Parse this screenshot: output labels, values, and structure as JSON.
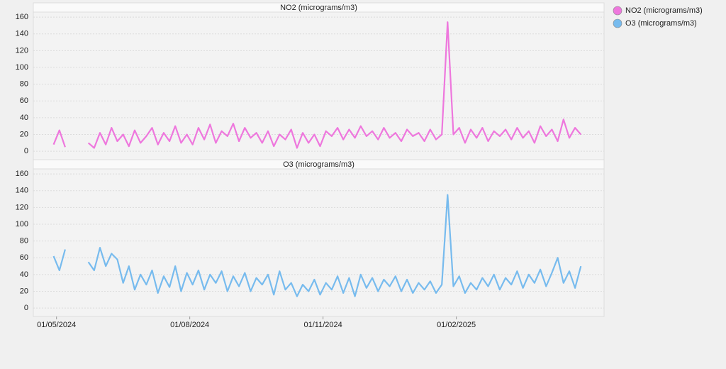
{
  "chart_data": {
    "type": "line",
    "x": [
      "2024-04-29",
      "2024-05-03",
      "2024-05-07",
      "2024-05-11",
      "2024-05-15",
      "2024-05-19",
      "2024-05-23",
      "2024-05-27",
      "2024-05-31",
      "2024-06-04",
      "2024-06-08",
      "2024-06-12",
      "2024-06-16",
      "2024-06-20",
      "2024-06-24",
      "2024-06-28",
      "2024-07-02",
      "2024-07-06",
      "2024-07-10",
      "2024-07-14",
      "2024-07-18",
      "2024-07-22",
      "2024-07-26",
      "2024-07-30",
      "2024-08-03",
      "2024-08-07",
      "2024-08-11",
      "2024-08-15",
      "2024-08-19",
      "2024-08-23",
      "2024-08-27",
      "2024-08-31",
      "2024-09-04",
      "2024-09-08",
      "2024-09-12",
      "2024-09-16",
      "2024-09-20",
      "2024-09-24",
      "2024-09-28",
      "2024-10-02",
      "2024-10-06",
      "2024-10-10",
      "2024-10-14",
      "2024-10-18",
      "2024-10-22",
      "2024-10-26",
      "2024-10-30",
      "2024-11-03",
      "2024-11-07",
      "2024-11-11",
      "2024-11-15",
      "2024-11-19",
      "2024-11-23",
      "2024-11-27",
      "2024-12-01",
      "2024-12-05",
      "2024-12-09",
      "2024-12-13",
      "2024-12-17",
      "2024-12-21",
      "2024-12-25",
      "2024-12-29",
      "2025-01-02",
      "2025-01-06",
      "2025-01-10",
      "2025-01-14",
      "2025-01-18",
      "2025-01-22",
      "2025-01-26",
      "2025-01-30",
      "2025-02-03",
      "2025-02-07",
      "2025-02-11",
      "2025-02-15",
      "2025-02-19",
      "2025-02-23",
      "2025-02-27",
      "2025-03-03",
      "2025-03-07",
      "2025-03-11",
      "2025-03-15",
      "2025-03-19",
      "2025-03-23",
      "2025-03-27",
      "2025-03-31",
      "2025-04-04",
      "2025-04-08",
      "2025-04-12",
      "2025-04-16",
      "2025-04-20",
      "2025-04-24",
      "2025-04-28"
    ],
    "series": [
      {
        "name": "NO2 (micrograms/m3)",
        "color": "#ee77dd",
        "values": [
          8,
          25,
          5,
          null,
          null,
          null,
          10,
          4,
          22,
          8,
          28,
          12,
          20,
          6,
          25,
          10,
          18,
          28,
          8,
          22,
          12,
          30,
          10,
          20,
          8,
          28,
          14,
          32,
          10,
          24,
          18,
          33,
          12,
          28,
          16,
          22,
          10,
          24,
          6,
          20,
          14,
          26,
          4,
          22,
          10,
          20,
          6,
          24,
          18,
          28,
          14,
          26,
          16,
          30,
          18,
          24,
          14,
          28,
          16,
          22,
          12,
          26,
          18,
          22,
          12,
          26,
          14,
          20,
          154,
          20,
          28,
          10,
          26,
          16,
          28,
          12,
          24,
          18,
          26,
          14,
          28,
          16,
          24,
          10,
          30,
          18,
          26,
          12,
          38,
          16,
          28,
          20
        ]
      },
      {
        "name": "O3 (micrograms/m3)",
        "color": "#77bbee",
        "values": [
          62,
          45,
          70,
          null,
          null,
          null,
          55,
          45,
          72,
          50,
          65,
          58,
          30,
          50,
          22,
          40,
          28,
          45,
          18,
          38,
          25,
          50,
          20,
          42,
          28,
          45,
          22,
          40,
          30,
          44,
          20,
          38,
          26,
          42,
          20,
          36,
          28,
          40,
          16,
          44,
          22,
          30,
          14,
          28,
          20,
          34,
          16,
          30,
          22,
          38,
          18,
          36,
          14,
          40,
          24,
          36,
          20,
          34,
          26,
          38,
          20,
          34,
          18,
          30,
          22,
          32,
          18,
          28,
          135,
          26,
          38,
          18,
          30,
          22,
          36,
          26,
          40,
          22,
          36,
          28,
          44,
          24,
          40,
          30,
          46,
          26,
          42,
          60,
          30,
          44,
          24,
          50
        ]
      }
    ],
    "xlim": [
      "2024-04-15",
      "2025-05-14"
    ],
    "xticks": [
      {
        "value": "2024-05-01",
        "label": "01/05/2024"
      },
      {
        "value": "2024-08-01",
        "label": "01/08/2024"
      },
      {
        "value": "2024-11-01",
        "label": "01/11/2024"
      },
      {
        "value": "2025-02-01",
        "label": "01/02/2025"
      }
    ],
    "ylim": [
      -10,
      166
    ],
    "yticks": [
      0,
      20,
      40,
      60,
      80,
      100,
      120,
      140,
      160
    ],
    "grid": true
  }
}
